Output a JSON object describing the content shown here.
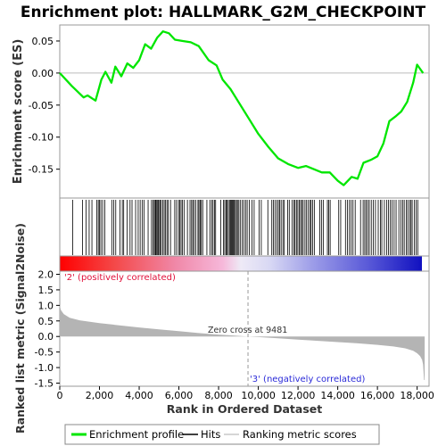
{
  "title": "Enrichment plot: HALLMARK_G2M_CHECKPOINT",
  "colors": {
    "enrichment_line": "#00e600",
    "hit_line": "#000000",
    "metric_fill": "#b4b4b4",
    "positive_text": "#e0103a",
    "negative_text": "#2a2ad8"
  },
  "legend": {
    "items": [
      {
        "label": "Enrichment profile",
        "icon": "green-line-icon"
      },
      {
        "label": "Hits",
        "icon": "black-line-icon"
      },
      {
        "label": "Ranking metric scores",
        "icon": "gray-line-icon"
      }
    ]
  },
  "annotations": {
    "positive": "'2' (positively correlated)",
    "negative": "'3' (negatively correlated)",
    "zero_cross": "Zero cross at 9481"
  },
  "chart_data": [
    {
      "type": "line",
      "name": "enrichment-profile",
      "ylabel": "Enrichment score (ES)",
      "xlim": [
        0,
        18600
      ],
      "ylim": [
        -0.195,
        0.075
      ],
      "yticks": [
        0.05,
        0.0,
        -0.05,
        -0.1,
        -0.15
      ],
      "ytick_labels": [
        "0.05",
        "0.00",
        "-0.05",
        "-0.10",
        "-0.15"
      ],
      "grid": false,
      "points": [
        [
          0,
          0.0
        ],
        [
          600,
          -0.02
        ],
        [
          1200,
          -0.038
        ],
        [
          1400,
          -0.035
        ],
        [
          1800,
          -0.043
        ],
        [
          2100,
          -0.01
        ],
        [
          2300,
          0.002
        ],
        [
          2600,
          -0.015
        ],
        [
          2800,
          0.01
        ],
        [
          3100,
          -0.005
        ],
        [
          3400,
          0.015
        ],
        [
          3700,
          0.008
        ],
        [
          4000,
          0.02
        ],
        [
          4300,
          0.045
        ],
        [
          4600,
          0.038
        ],
        [
          4900,
          0.055
        ],
        [
          5200,
          0.065
        ],
        [
          5500,
          0.062
        ],
        [
          5800,
          0.052
        ],
        [
          6200,
          0.05
        ],
        [
          6600,
          0.048
        ],
        [
          7000,
          0.042
        ],
        [
          7500,
          0.02
        ],
        [
          7900,
          0.012
        ],
        [
          8200,
          -0.01
        ],
        [
          8600,
          -0.025
        ],
        [
          9000,
          -0.045
        ],
        [
          9500,
          -0.07
        ],
        [
          10000,
          -0.095
        ],
        [
          10500,
          -0.115
        ],
        [
          11000,
          -0.133
        ],
        [
          11500,
          -0.142
        ],
        [
          12000,
          -0.148
        ],
        [
          12400,
          -0.145
        ],
        [
          12800,
          -0.15
        ],
        [
          13200,
          -0.155
        ],
        [
          13600,
          -0.155
        ],
        [
          14000,
          -0.168
        ],
        [
          14300,
          -0.175
        ],
        [
          14700,
          -0.162
        ],
        [
          15000,
          -0.165
        ],
        [
          15300,
          -0.14
        ],
        [
          15700,
          -0.135
        ],
        [
          16000,
          -0.13
        ],
        [
          16300,
          -0.11
        ],
        [
          16600,
          -0.075
        ],
        [
          16900,
          -0.068
        ],
        [
          17200,
          -0.06
        ],
        [
          17500,
          -0.045
        ],
        [
          17800,
          -0.015
        ],
        [
          18000,
          0.013
        ],
        [
          18300,
          0.0
        ]
      ]
    },
    {
      "type": "hits",
      "name": "hits",
      "hit_ranks": [
        650,
        1150,
        1320,
        1480,
        1620,
        1870,
        1940,
        2000,
        2070,
        2160,
        2270,
        2620,
        2720,
        2820,
        3030,
        3150,
        3220,
        3390,
        3540,
        3640,
        3820,
        3950,
        4050,
        4150,
        4240,
        4450,
        4620,
        4700,
        4760,
        4810,
        4850,
        4900,
        4950,
        4990,
        5060,
        5110,
        5190,
        5260,
        5330,
        5400,
        5470,
        5580,
        5790,
        5880,
        5980,
        6040,
        6110,
        6180,
        6260,
        6430,
        6560,
        6640,
        6700,
        6770,
        6850,
        6960,
        7010,
        7070,
        7130,
        7200,
        7410,
        7560,
        7650,
        7720,
        7790,
        7850,
        8110,
        8250,
        8310,
        8380,
        8430,
        8490,
        8550,
        8600,
        8650,
        8690,
        8740,
        8790,
        8840,
        8900,
        8950,
        9020,
        9090,
        9190,
        9270,
        9360,
        9440,
        9550,
        9680,
        9790,
        10040,
        10150,
        10480,
        10680,
        10760,
        10840,
        10930,
        11010,
        11080,
        11150,
        11240,
        11310,
        11480,
        11560,
        11700,
        11790,
        11850,
        11920,
        11990,
        12060,
        12130,
        12190,
        12260,
        12350,
        12430,
        12510,
        12600,
        12660,
        12730,
        12820,
        13100,
        13180,
        13270,
        13480,
        13550,
        13620,
        14050,
        14150,
        14390,
        14490,
        14590,
        14680,
        14770,
        14880,
        15150,
        15280,
        15360,
        15430,
        15510,
        15590,
        15690,
        15790,
        15900,
        16040,
        16150,
        16220,
        16350,
        16460,
        16560,
        16650,
        16740,
        16840,
        16940,
        17080,
        17190,
        17270,
        17350,
        17460,
        17530,
        17620,
        17690,
        17750,
        17860,
        17950,
        18030
      ]
    },
    {
      "type": "area",
      "name": "ranked-list-metric",
      "ylabel": "Ranked list metric (Signal2Noise)",
      "xlabel": "Rank in Ordered Dataset",
      "xlim": [
        0,
        18600
      ],
      "ylim": [
        -1.6,
        2.1
      ],
      "yticks": [
        2.0,
        1.5,
        1.0,
        0.5,
        0.0,
        -0.5,
        -1.0,
        -1.5
      ],
      "ytick_labels": [
        "2.0",
        "1.5",
        "1.0",
        "0.5",
        "0.0",
        "-0.5",
        "-1.0",
        "-1.5"
      ],
      "xticks": [
        0,
        2000,
        4000,
        6000,
        8000,
        10000,
        12000,
        14000,
        16000,
        18000
      ],
      "xtick_labels": [
        "0",
        "2,000",
        "4,000",
        "6,000",
        "8,000",
        "10,000",
        "12,000",
        "14,000",
        "16,000",
        "18,000"
      ],
      "zero_cross": 9481,
      "grid": false,
      "points": [
        [
          0,
          1.0
        ],
        [
          60,
          0.85
        ],
        [
          200,
          0.72
        ],
        [
          500,
          0.6
        ],
        [
          1000,
          0.52
        ],
        [
          2000,
          0.43
        ],
        [
          3000,
          0.36
        ],
        [
          4000,
          0.29
        ],
        [
          5000,
          0.23
        ],
        [
          6000,
          0.17
        ],
        [
          7000,
          0.11
        ],
        [
          8000,
          0.06
        ],
        [
          9481,
          0.0
        ],
        [
          10000,
          -0.02
        ],
        [
          11000,
          -0.06
        ],
        [
          12000,
          -0.1
        ],
        [
          13000,
          -0.14
        ],
        [
          14000,
          -0.18
        ],
        [
          15000,
          -0.22
        ],
        [
          16000,
          -0.27
        ],
        [
          16800,
          -0.32
        ],
        [
          17400,
          -0.38
        ],
        [
          17800,
          -0.46
        ],
        [
          18000,
          -0.54
        ],
        [
          18150,
          -0.63
        ],
        [
          18250,
          -0.75
        ],
        [
          18300,
          -0.9
        ],
        [
          18350,
          -1.4
        ],
        [
          18380,
          -1.4
        ]
      ]
    }
  ]
}
